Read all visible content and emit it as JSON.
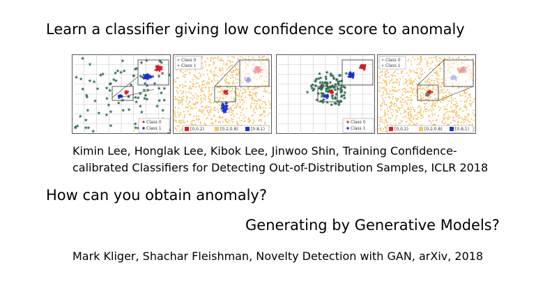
{
  "slide": {
    "title": "Learn a classifier giving low confidence score to anomaly",
    "citation_1_line1": "Kimin Lee, Honglak Lee, Kibok Lee, Jinwoo Shin, Training Confidence-",
    "citation_1_line2": "calibrated Classifiers for Detecting Out-of-Distribution Samples, ICLR 2018",
    "question": "How can you obtain anomaly?",
    "answer": "Generating by Generative Models?",
    "citation_2": "Mark Kliger, Shachar Fleishman, Novelty Detection with GAN, arXiv, 2018"
  },
  "figures": {
    "legend_class0": "Class 0",
    "legend_class1": "Class 1",
    "bin_low": "[0,0.2)",
    "bin_mid": "[0.2,0.8)",
    "bin_high": "[0.8,1)",
    "colors": {
      "class0": "#d42020",
      "class1": "#1a2fd6",
      "samples": "#2e6b50",
      "mid_conf": "#f5c46a",
      "grid": "#c8c8c8"
    }
  }
}
